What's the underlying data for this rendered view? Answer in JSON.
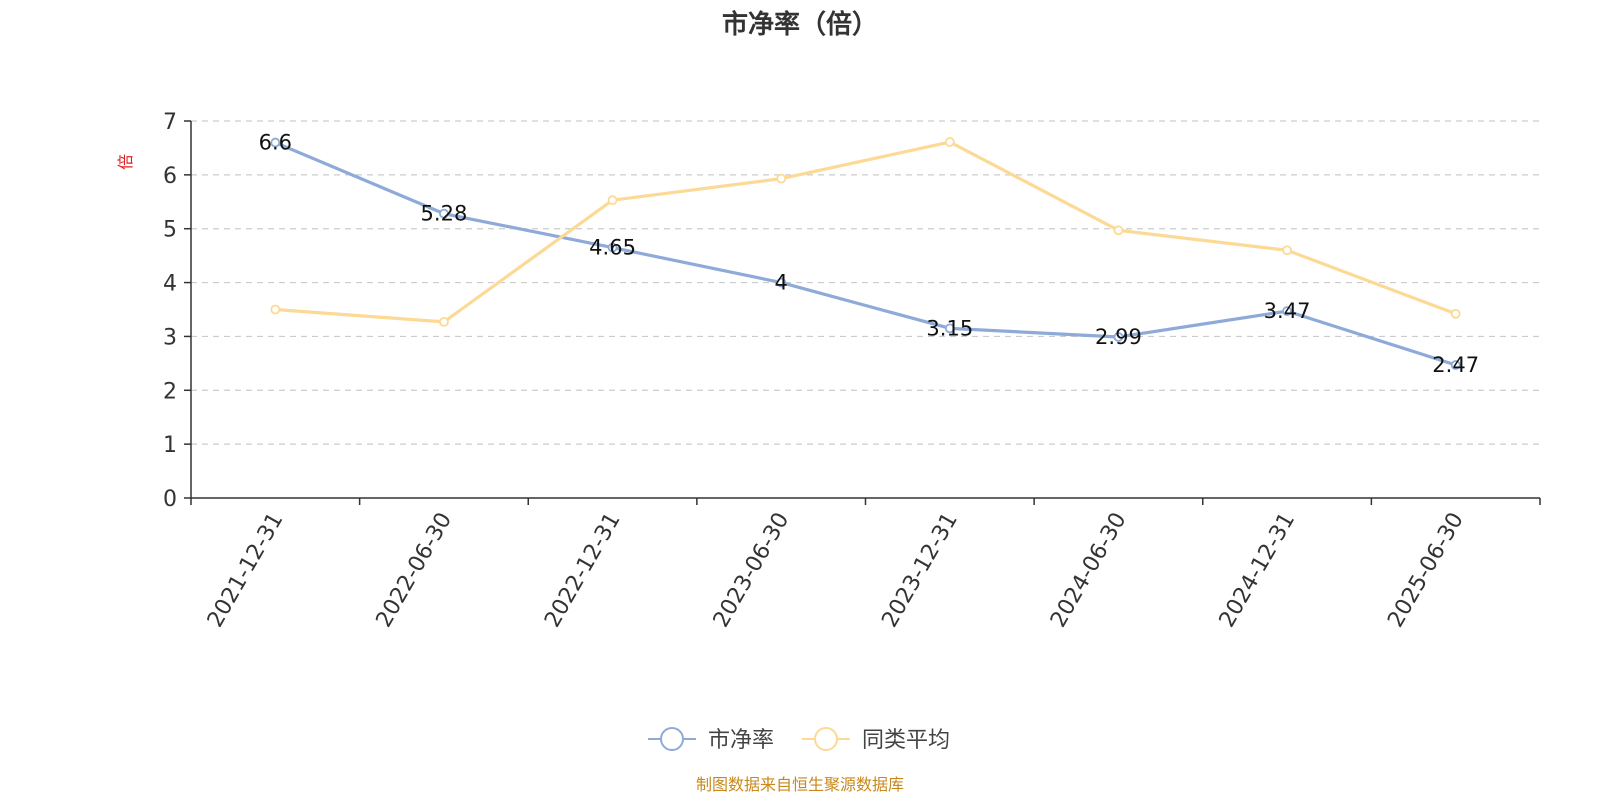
{
  "chart_data": {
    "type": "line",
    "title": "市净率（倍）",
    "ylabel": "倍",
    "xlabel": "",
    "categories": [
      "2021-12-31",
      "2022-06-30",
      "2022-12-31",
      "2023-06-30",
      "2023-12-31",
      "2024-06-30",
      "2024-12-31",
      "2025-06-30"
    ],
    "ylim": [
      0,
      7
    ],
    "yticks": [
      0,
      1,
      2,
      3,
      4,
      5,
      6,
      7
    ],
    "grid": true,
    "legend_position": "bottom-center",
    "series": [
      {
        "name": "市净率",
        "color": "#8eaad8",
        "show_labels": true,
        "values": [
          6.6,
          5.28,
          4.65,
          4,
          3.15,
          2.99,
          3.47,
          2.47
        ]
      },
      {
        "name": "同类平均",
        "color": "#fcd995",
        "show_labels": false,
        "values": [
          3.5,
          3.27,
          5.53,
          5.93,
          6.61,
          4.97,
          4.6,
          3.42
        ]
      }
    ]
  },
  "source_note": "制图数据来自恒生聚源数据库"
}
